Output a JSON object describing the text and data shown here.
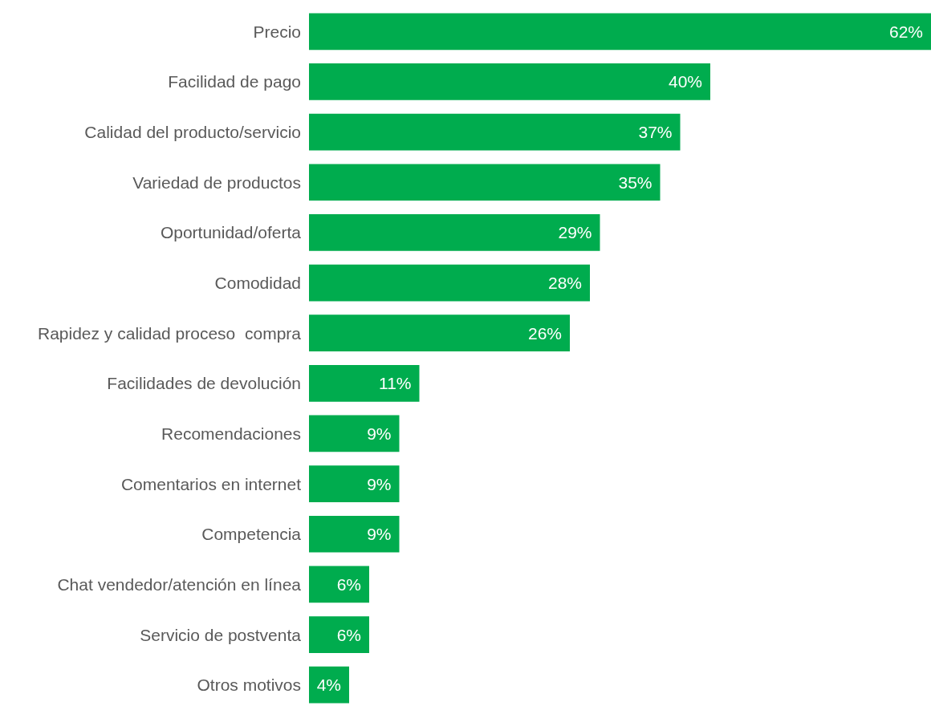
{
  "chart_data": {
    "type": "bar",
    "orientation": "horizontal",
    "categories": [
      "Precio",
      "Facilidad de pago",
      "Calidad del producto/servicio",
      "Variedad de productos",
      "Oportunidad/oferta",
      "Comodidad",
      "Rapidez y calidad proceso  compra",
      "Facilidades de devolución",
      "Recomendaciones",
      "Comentarios en internet",
      "Competencia",
      "Chat vendedor/atención en línea",
      "Servicio de postventa",
      "Otros motivos"
    ],
    "values": [
      62,
      40,
      37,
      35,
      29,
      28,
      26,
      11,
      9,
      9,
      9,
      6,
      6,
      4
    ],
    "value_labels": [
      "62%",
      "40%",
      "37%",
      "35%",
      "29%",
      "28%",
      "26%",
      "11%",
      "9%",
      "9%",
      "9%",
      "6%",
      "6%",
      "4%"
    ],
    "color": "#00ac4e"
  }
}
